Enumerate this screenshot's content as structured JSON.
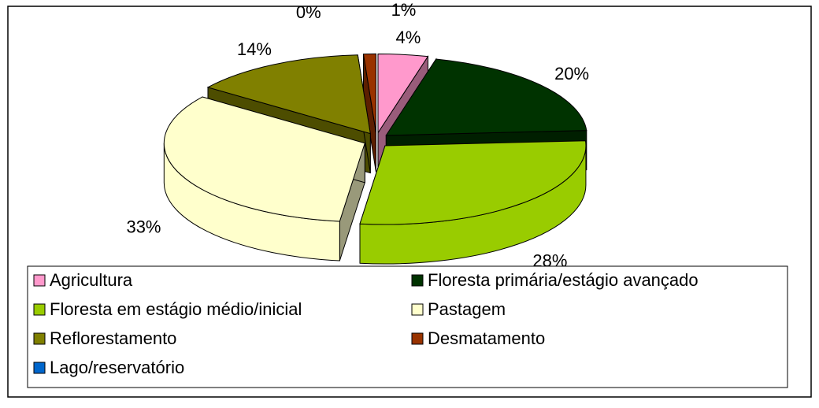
{
  "chart_data": {
    "type": "pie",
    "categories": [
      "Agricultura",
      "Floresta primária/estágio avançado",
      "Floresta em estágio médio/inicial",
      "Pastagem",
      "Reflorestamento",
      "Desmatamento",
      "Lago/reservatório"
    ],
    "values": [
      4,
      20,
      28,
      33,
      14,
      1,
      0
    ],
    "value_labels": [
      "4%",
      "20%",
      "28%",
      "33%",
      "14%",
      "1%",
      "0%"
    ],
    "colors": [
      "#ff99cc",
      "#003300",
      "#99cc00",
      "#ffffcc",
      "#808000",
      "#993300",
      "#0066cc"
    ],
    "legend": "bottom"
  }
}
